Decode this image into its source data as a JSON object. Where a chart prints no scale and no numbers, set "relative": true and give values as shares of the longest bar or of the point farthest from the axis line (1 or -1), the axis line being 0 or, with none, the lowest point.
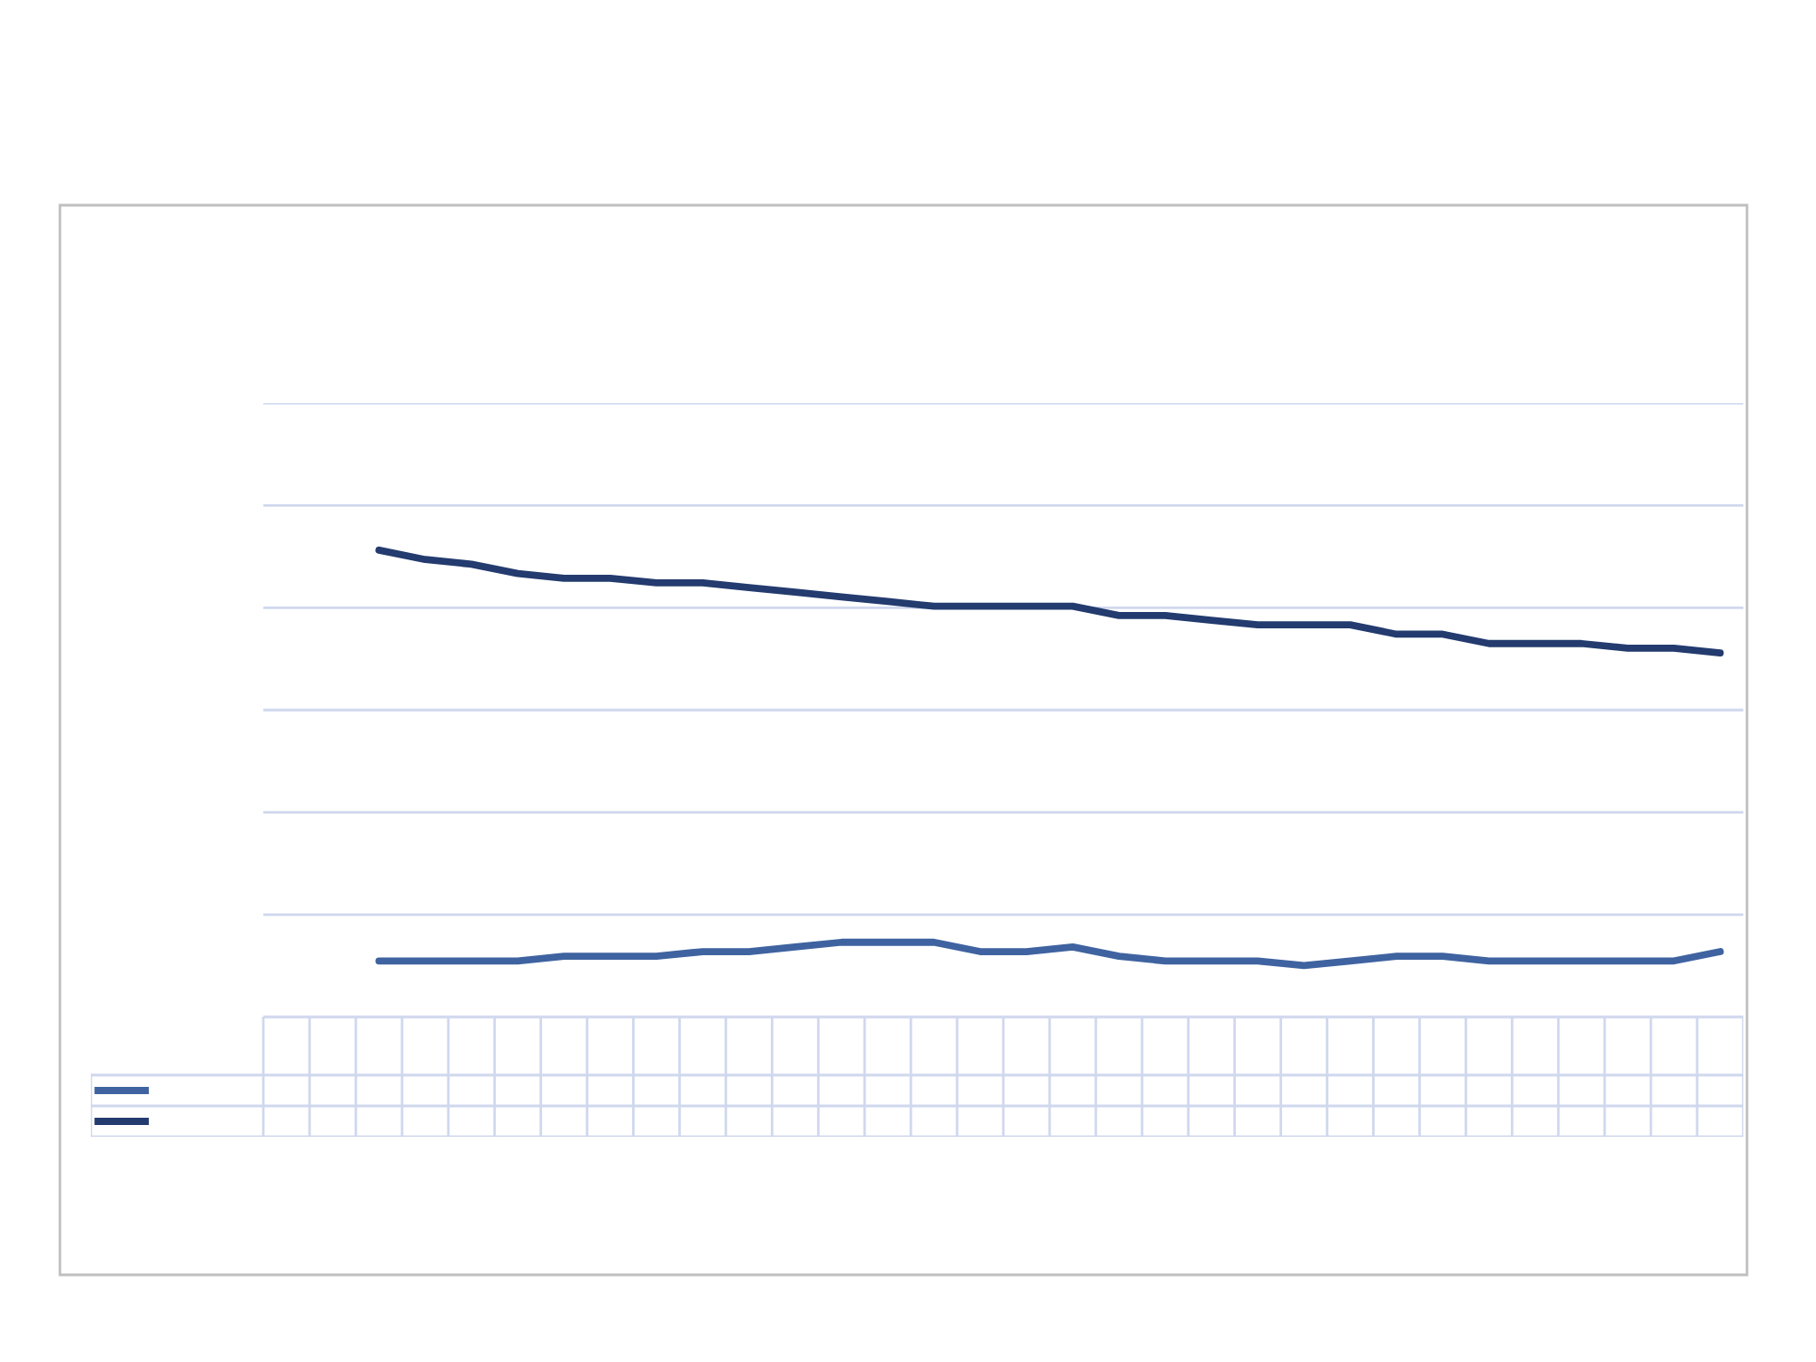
{
  "chart_data": {
    "type": "line",
    "relative": true,
    "grid": "y",
    "legend": false,
    "categories": [
      null,
      null,
      null,
      null,
      null,
      null,
      null,
      null,
      null,
      null,
      null,
      null,
      null,
      null,
      null,
      null,
      null,
      null,
      null,
      null,
      null,
      null,
      null,
      null,
      null,
      null,
      null,
      null,
      null,
      null,
      null,
      null
    ],
    "series": [
      {
        "color": "#3f63a0",
        "values": [
          null,
          null,
          0.12,
          0.12,
          0.12,
          0.12,
          0.13,
          0.13,
          0.13,
          0.14,
          0.14,
          0.15,
          0.16,
          0.16,
          0.16,
          0.14,
          0.14,
          0.15,
          0.13,
          0.12,
          0.12,
          0.12,
          0.11,
          0.12,
          0.13,
          0.13,
          0.12,
          0.12,
          0.12,
          0.12,
          0.12,
          0.14
        ]
      },
      {
        "color": "#233b6e",
        "values": [
          null,
          null,
          1,
          0.98,
          0.97,
          0.95,
          0.94,
          0.94,
          0.93,
          0.93,
          0.92,
          0.91,
          0.9,
          0.89,
          0.88,
          0.88,
          0.88,
          0.88,
          0.86,
          0.86,
          0.85,
          0.84,
          0.84,
          0.84,
          0.82,
          0.82,
          0.8,
          0.8,
          0.8,
          0.79,
          0.79,
          0.78
        ]
      }
    ]
  }
}
